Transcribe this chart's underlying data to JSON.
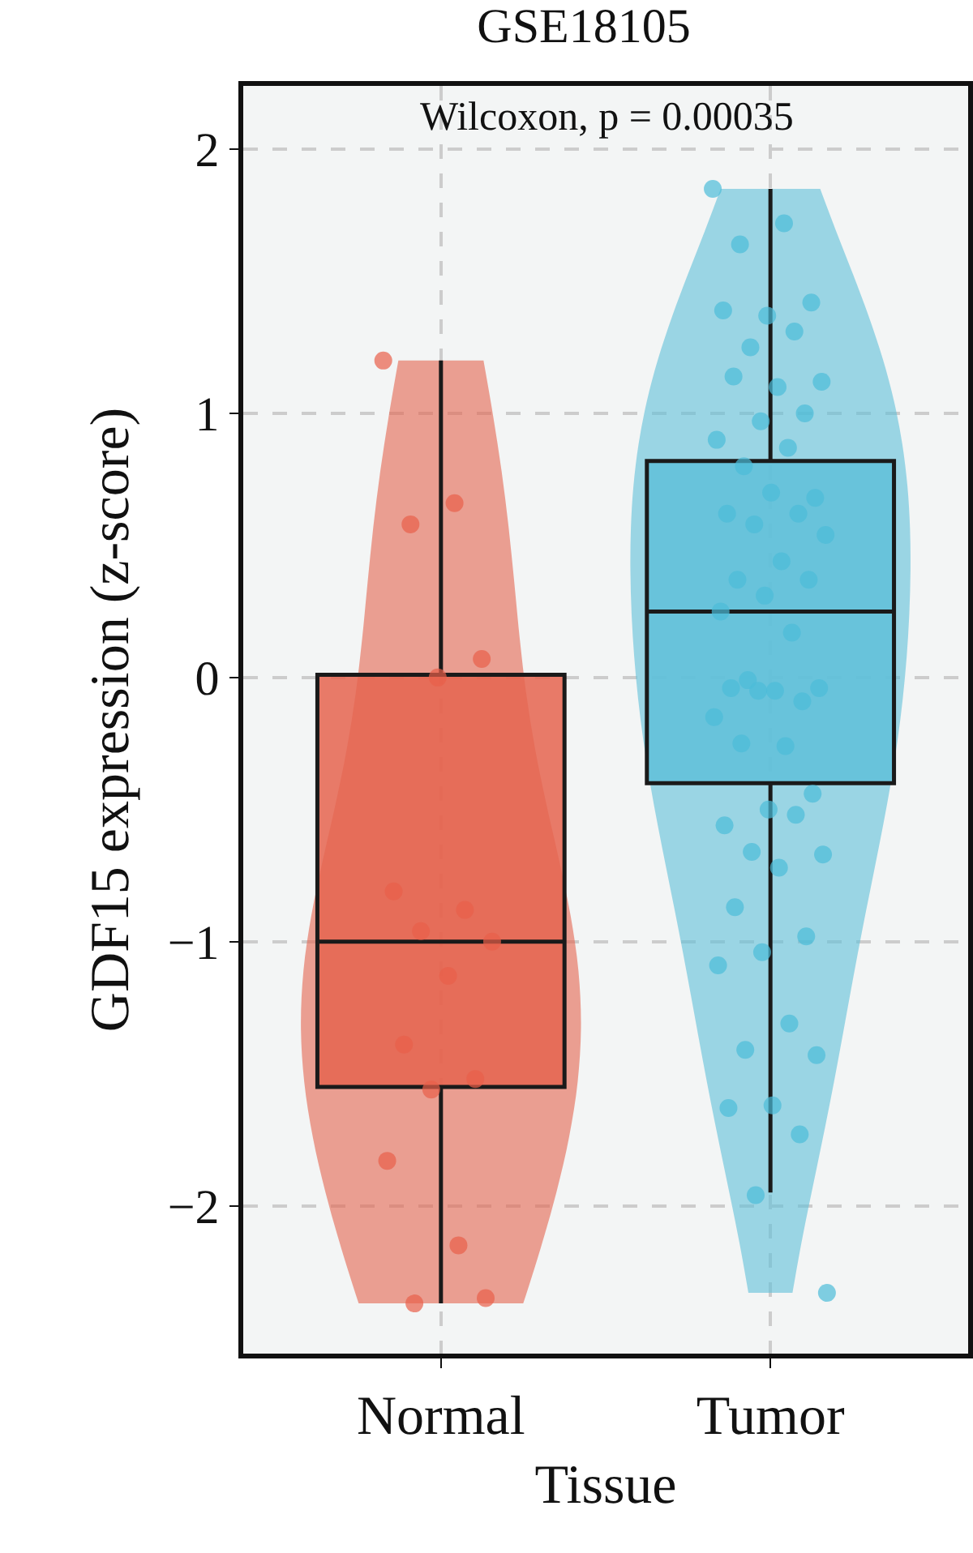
{
  "chart_data": {
    "type": "box",
    "title": "GSE18105",
    "xlabel": "Tissue",
    "ylabel": "GDF15 expression (z-score)",
    "annotations": [
      "Wilcoxon, p = 0.00035"
    ],
    "categories": [
      "Normal",
      "Tumor"
    ],
    "colors": [
      "#e5644f",
      "#5fc0d9"
    ],
    "boxes": [
      {
        "low": -2.37,
        "q1": -1.55,
        "median": -1.0,
        "q3": 0.01,
        "high": 1.2
      },
      {
        "low": -1.95,
        "q1": -0.4,
        "median": 0.25,
        "q3": 0.82,
        "high": 1.85
      }
    ],
    "series": [
      {
        "type": "scatter",
        "color": "#e8604a",
        "x": [
          "Normal",
          "Normal",
          "Normal",
          "Normal",
          "Normal",
          "Normal",
          "Normal",
          "Normal",
          "Normal",
          "Normal",
          "Normal",
          "Normal",
          "Normal",
          "Normal",
          "Normal",
          "Normal",
          "Normal"
        ],
        "values": [
          1.2,
          0.66,
          0.58,
          0.07,
          0.0,
          -0.81,
          -0.88,
          -0.96,
          -1.0,
          -1.13,
          -1.39,
          -1.52,
          -1.56,
          -1.83,
          -2.15,
          -2.37,
          -2.35
        ]
      },
      {
        "type": "scatter",
        "color": "#4bbcd8",
        "x": [
          "Tumor",
          "Tumor",
          "Tumor",
          "Tumor",
          "Tumor",
          "Tumor",
          "Tumor",
          "Tumor",
          "Tumor",
          "Tumor",
          "Tumor",
          "Tumor",
          "Tumor",
          "Tumor",
          "Tumor",
          "Tumor",
          "Tumor",
          "Tumor",
          "Tumor",
          "Tumor",
          "Tumor",
          "Tumor",
          "Tumor",
          "Tumor",
          "Tumor",
          "Tumor",
          "Tumor",
          "Tumor",
          "Tumor",
          "Tumor",
          "Tumor",
          "Tumor",
          "Tumor",
          "Tumor",
          "Tumor",
          "Tumor",
          "Tumor",
          "Tumor",
          "Tumor",
          "Tumor",
          "Tumor",
          "Tumor",
          "Tumor",
          "Tumor",
          "Tumor",
          "Tumor",
          "Tumor",
          "Tumor",
          "Tumor",
          "Tumor",
          "Tumor",
          "Tumor",
          "Tumor",
          "Tumor",
          "Tumor",
          "Tumor"
        ],
        "values": [
          1.85,
          1.72,
          1.64,
          1.42,
          1.37,
          1.39,
          1.31,
          1.25,
          1.12,
          1.1,
          1.14,
          1.0,
          0.97,
          0.9,
          0.87,
          0.8,
          0.68,
          0.7,
          0.62,
          0.62,
          0.58,
          0.54,
          0.44,
          0.37,
          0.37,
          0.31,
          0.25,
          0.17,
          -0.01,
          -0.04,
          -0.05,
          -0.04,
          -0.09,
          -0.05,
          -0.15,
          -0.26,
          -0.25,
          -0.44,
          -0.5,
          -0.56,
          -0.52,
          -0.66,
          -0.67,
          -0.72,
          -0.87,
          -0.98,
          -1.04,
          -1.09,
          -1.31,
          -1.41,
          -1.43,
          -1.62,
          -1.63,
          -1.73,
          -1.96,
          -2.33
        ]
      }
    ],
    "ylim": [
      -2.56,
      2.24
    ],
    "yticks": [
      -2,
      -1,
      0,
      1,
      2
    ],
    "grid": true
  }
}
